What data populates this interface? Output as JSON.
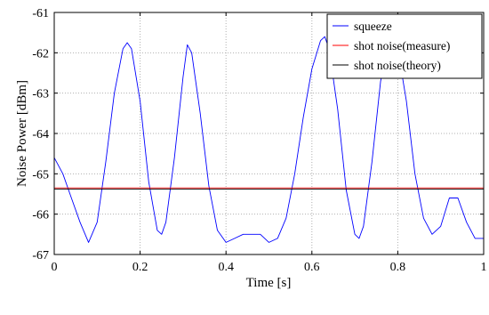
{
  "chart_data": {
    "type": "line",
    "xlabel": "Time [s]",
    "ylabel": "Noise Power [dBm]",
    "xlim": [
      0,
      1
    ],
    "ylim": [
      -67,
      -61
    ],
    "xticks": [
      0,
      0.2,
      0.4,
      0.6,
      0.8,
      1
    ],
    "xtick_labels": [
      "0",
      "0.2",
      "0.4",
      "0.6",
      "0.8",
      "1"
    ],
    "yticks": [
      -67,
      -66,
      -65,
      -64,
      -63,
      -62,
      -61
    ],
    "ytick_labels": [
      "-67",
      "-66",
      "-65",
      "-64",
      "-63",
      "-62",
      "-61"
    ],
    "grid": true,
    "legend_position": "top-right",
    "series": [
      {
        "name": "squeeze",
        "color": "#0000ff",
        "x": [
          0,
          0.02,
          0.04,
          0.06,
          0.08,
          0.1,
          0.12,
          0.14,
          0.16,
          0.17,
          0.18,
          0.2,
          0.22,
          0.24,
          0.25,
          0.26,
          0.28,
          0.3,
          0.31,
          0.32,
          0.34,
          0.36,
          0.38,
          0.4,
          0.42,
          0.44,
          0.46,
          0.48,
          0.5,
          0.52,
          0.54,
          0.56,
          0.58,
          0.6,
          0.62,
          0.63,
          0.64,
          0.66,
          0.68,
          0.7,
          0.71,
          0.72,
          0.74,
          0.76,
          0.78,
          0.79,
          0.8,
          0.82,
          0.84,
          0.86,
          0.88,
          0.9,
          0.92,
          0.94,
          0.96,
          0.98,
          1.0
        ],
        "values": [
          -64.6,
          -65.0,
          -65.6,
          -66.2,
          -66.7,
          -66.2,
          -64.7,
          -63.0,
          -61.9,
          -61.75,
          -61.9,
          -63.2,
          -65.2,
          -66.4,
          -66.5,
          -66.2,
          -64.6,
          -62.6,
          -61.8,
          -62.0,
          -63.5,
          -65.3,
          -66.4,
          -66.7,
          -66.6,
          -66.5,
          -66.5,
          -66.5,
          -66.7,
          -66.6,
          -66.1,
          -65.0,
          -63.6,
          -62.4,
          -61.7,
          -61.6,
          -61.9,
          -63.4,
          -65.4,
          -66.5,
          -66.6,
          -66.3,
          -64.7,
          -62.7,
          -61.8,
          -61.75,
          -61.9,
          -63.2,
          -65.0,
          -66.1,
          -66.5,
          -66.3,
          -65.6,
          -65.6,
          -66.2,
          -66.6,
          -66.6
        ]
      },
      {
        "name": "shot noise(measure)",
        "color": "#ff0000",
        "x": [
          0,
          1
        ],
        "values": [
          -65.35,
          -65.35
        ]
      },
      {
        "name": "shot noise(theory)",
        "color": "#000000",
        "x": [
          0,
          1
        ],
        "values": [
          -65.38,
          -65.38
        ]
      }
    ]
  }
}
